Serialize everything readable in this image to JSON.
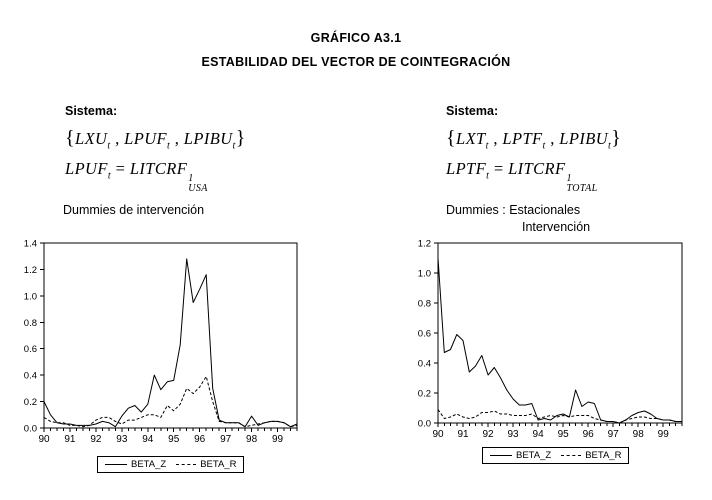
{
  "page_bg": "#ffffff",
  "line_color": "#000000",
  "title": {
    "line1": "GRÁFICO A3.1",
    "line2": "ESTABILIDAD DEL VECTOR DE COINTEGRACIÓN"
  },
  "systems": {
    "left": {
      "heading": "Sistema:",
      "set_tokens": [
        {
          "k": "brace",
          "t": "{"
        },
        {
          "k": "var",
          "t": "LXU"
        },
        {
          "k": "sub",
          "t": "t"
        },
        {
          "k": "plain",
          "t": " , "
        },
        {
          "k": "var",
          "t": "LPUF"
        },
        {
          "k": "sub",
          "t": "t"
        },
        {
          "k": "plain",
          "t": " , "
        },
        {
          "k": "var",
          "t": "LPIBU"
        },
        {
          "k": "sub",
          "t": "t"
        },
        {
          "k": "brace",
          "t": "}"
        }
      ],
      "eq_tokens": [
        {
          "k": "var",
          "t": "LPUF"
        },
        {
          "k": "sub",
          "t": "t"
        },
        {
          "k": "plain",
          "t": " = "
        },
        {
          "k": "var",
          "t": "LITCRF"
        },
        {
          "k": "supsub",
          "sup": "1",
          "sub": "USA"
        }
      ],
      "dummies": [
        "Dummies de intervención"
      ]
    },
    "right": {
      "heading": "Sistema:",
      "set_tokens": [
        {
          "k": "brace",
          "t": "{"
        },
        {
          "k": "var",
          "t": "LXT"
        },
        {
          "k": "sub",
          "t": "t"
        },
        {
          "k": "plain",
          "t": " , "
        },
        {
          "k": "var",
          "t": "LPTF"
        },
        {
          "k": "sub",
          "t": "t"
        },
        {
          "k": "plain",
          "t": " , "
        },
        {
          "k": "var",
          "t": "LPIBU"
        },
        {
          "k": "sub",
          "t": "t"
        },
        {
          "k": "brace",
          "t": "}"
        }
      ],
      "eq_tokens": [
        {
          "k": "var",
          "t": "LPTF"
        },
        {
          "k": "sub",
          "t": "t"
        },
        {
          "k": "plain",
          "t": " = "
        },
        {
          "k": "var",
          "t": "LITCRF"
        },
        {
          "k": "supsub",
          "sup": "1",
          "sub": "TOTAL"
        }
      ],
      "dummies": [
        "Dummies : Estacionales",
        "Intervención"
      ]
    }
  },
  "chart_data": [
    {
      "type": "line",
      "id": "left-chart",
      "title": "",
      "xlabel": "",
      "ylabel": "",
      "x_unit": "quarterly",
      "x_start": "1990Q1",
      "x_end": "1999Q4",
      "xtick_labels": [
        "90",
        "91",
        "92",
        "93",
        "94",
        "95",
        "96",
        "97",
        "98",
        "99"
      ],
      "ylim": [
        0.0,
        1.4
      ],
      "ytick_labels": [
        "0.0",
        "0.2",
        "0.4",
        "0.6",
        "0.8",
        "1.0",
        "1.2",
        "1.4"
      ],
      "grid": false,
      "frame": "box",
      "legend_position": "bottom",
      "series": [
        {
          "name": "BETA_Z",
          "style": "solid",
          "values": [
            0.2,
            0.1,
            0.04,
            0.03,
            0.03,
            0.02,
            0.02,
            0.02,
            0.03,
            0.05,
            0.04,
            0.01,
            0.09,
            0.15,
            0.17,
            0.12,
            0.18,
            0.4,
            0.29,
            0.35,
            0.36,
            0.63,
            1.28,
            0.95,
            1.05,
            1.16,
            0.3,
            0.06,
            0.04,
            0.04,
            0.04,
            0.01,
            0.09,
            0.02,
            0.04,
            0.05,
            0.05,
            0.04,
            0.01,
            0.03
          ]
        },
        {
          "name": "BETA_R",
          "style": "dashed",
          "values": [
            0.08,
            0.05,
            0.04,
            0.04,
            0.02,
            0.02,
            0.01,
            0.02,
            0.06,
            0.08,
            0.08,
            0.05,
            0.03,
            0.06,
            0.06,
            0.08,
            0.1,
            0.1,
            0.08,
            0.17,
            0.13,
            0.18,
            0.3,
            0.26,
            0.31,
            0.39,
            0.2,
            0.05,
            0.04,
            0.04,
            0.04,
            0.01,
            0.02,
            0.03,
            0.04,
            0.05,
            0.05,
            0.04,
            0.01,
            0.02
          ]
        }
      ]
    },
    {
      "type": "line",
      "id": "right-chart",
      "title": "",
      "xlabel": "",
      "ylabel": "",
      "x_unit": "quarterly",
      "x_start": "1990Q1",
      "x_end": "1999Q4",
      "xtick_labels": [
        "90",
        "91",
        "92",
        "93",
        "94",
        "95",
        "96",
        "97",
        "98",
        "99"
      ],
      "ylim": [
        0.0,
        1.2
      ],
      "ytick_labels": [
        "0.0",
        "0.2",
        "0.4",
        "0.6",
        "0.8",
        "1.0",
        "1.2"
      ],
      "grid": false,
      "frame": "box",
      "legend_position": "bottom",
      "series": [
        {
          "name": "BETA_Z",
          "style": "solid",
          "values": [
            1.1,
            0.47,
            0.49,
            0.59,
            0.55,
            0.34,
            0.38,
            0.45,
            0.32,
            0.37,
            0.3,
            0.22,
            0.16,
            0.12,
            0.12,
            0.13,
            0.02,
            0.03,
            0.02,
            0.05,
            0.06,
            0.04,
            0.22,
            0.11,
            0.14,
            0.13,
            0.02,
            0.01,
            0.01,
            0.0,
            0.02,
            0.05,
            0.07,
            0.08,
            0.06,
            0.03,
            0.02,
            0.02,
            0.01,
            0.01
          ]
        },
        {
          "name": "BETA_R",
          "style": "dashed",
          "values": [
            0.09,
            0.03,
            0.04,
            0.06,
            0.04,
            0.03,
            0.04,
            0.07,
            0.07,
            0.08,
            0.06,
            0.06,
            0.05,
            0.05,
            0.05,
            0.06,
            0.03,
            0.04,
            0.05,
            0.04,
            0.05,
            0.04,
            0.05,
            0.05,
            0.05,
            0.03,
            0.02,
            0.01,
            0.01,
            0.0,
            0.02,
            0.03,
            0.04,
            0.04,
            0.03,
            0.03,
            0.02,
            0.02,
            0.01,
            0.01
          ]
        }
      ]
    }
  ]
}
